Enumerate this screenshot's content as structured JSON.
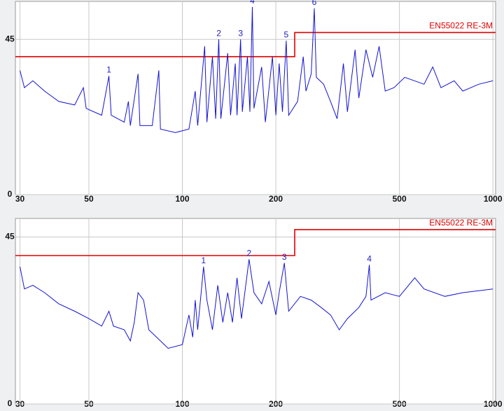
{
  "chart_data": [
    {
      "type": "line",
      "log_x": true,
      "grid": true,
      "xlim": [
        29,
        1020
      ],
      "xticks": [
        30,
        50,
        100,
        200,
        500,
        1000
      ],
      "ylim": [
        0,
        56
      ],
      "yticks": [
        0,
        45
      ],
      "series": [
        {
          "name": "EN55022 RE-3M",
          "color": "#e00000",
          "x": [
            29,
            230,
            230,
            1020
          ],
          "values": [
            40,
            40,
            47,
            47
          ]
        },
        {
          "color": "#1414d2",
          "x": [
            30,
            31,
            33,
            36,
            40,
            45,
            48,
            49,
            55,
            58,
            59,
            65,
            67,
            68,
            72,
            73,
            80,
            84,
            85,
            95,
            105,
            110,
            112,
            118,
            120,
            125,
            128,
            131,
            133,
            140,
            143,
            148,
            150,
            154,
            156,
            162,
            165,
            168,
            170,
            180,
            185,
            195,
            200,
            205,
            210,
            216,
            220,
            235,
            245,
            250,
            260,
            266,
            270,
            285,
            300,
            315,
            330,
            340,
            360,
            370,
            390,
            410,
            430,
            450,
            480,
            520,
            600,
            640,
            680,
            750,
            800,
            900,
            1000
          ],
          "values": [
            36,
            31,
            33,
            30,
            27,
            26,
            31,
            25,
            23,
            34.4,
            23,
            21,
            27,
            20,
            35,
            20,
            20,
            36,
            19,
            18,
            19,
            30,
            20,
            43,
            21,
            40,
            22,
            45,
            22,
            41,
            23,
            38,
            23,
            45,
            24,
            40,
            24,
            54.4,
            25,
            37,
            21,
            40,
            23,
            38,
            24,
            44.6,
            23,
            27,
            40,
            30,
            35,
            54,
            34,
            32,
            27,
            22,
            38,
            24,
            42,
            28,
            42,
            34,
            43,
            30,
            31,
            34,
            32,
            37,
            31,
            33,
            30,
            32,
            33
          ]
        }
      ],
      "markers": [
        {
          "label": "1",
          "x": 58,
          "y": 34.4
        },
        {
          "label": "2",
          "x": 131,
          "y": 45
        },
        {
          "label": "3",
          "x": 154,
          "y": 45
        },
        {
          "label": "4",
          "x": 168,
          "y": 54.4
        },
        {
          "label": "5",
          "x": 216,
          "y": 44.6
        },
        {
          "label": "6",
          "x": 266,
          "y": 54
        }
      ]
    },
    {
      "type": "line",
      "log_x": true,
      "grid": true,
      "xlim": [
        29,
        1020
      ],
      "xticks": [
        30,
        50,
        100,
        200,
        500,
        1000
      ],
      "ylim": [
        0,
        50
      ],
      "yticks": [
        0,
        45
      ],
      "series": [
        {
          "name": "EN55022 RE-3M",
          "color": "#e00000",
          "x": [
            29,
            230,
            230,
            1020
          ],
          "values": [
            40,
            40,
            47,
            47
          ]
        },
        {
          "color": "#1414d2",
          "x": [
            30,
            31,
            33,
            36,
            40,
            45,
            50,
            55,
            58,
            60,
            65,
            68,
            70,
            72,
            75,
            78,
            85,
            90,
            100,
            105,
            108,
            110,
            112,
            117,
            120,
            125,
            130,
            135,
            140,
            145,
            150,
            155,
            164,
            170,
            180,
            190,
            200,
            205,
            213,
            220,
            240,
            260,
            280,
            300,
            320,
            340,
            370,
            390,
            400,
            405,
            450,
            500,
            560,
            600,
            700,
            800,
            1000
          ],
          "values": [
            37,
            31,
            32,
            30,
            27,
            25,
            23,
            21,
            25,
            21,
            20,
            17,
            22,
            30,
            28,
            20,
            17,
            15,
            16,
            24,
            18,
            28,
            20,
            37,
            28,
            20,
            32,
            22,
            30,
            22,
            34,
            23,
            39,
            30,
            27,
            33,
            24,
            30,
            38,
            25,
            29,
            28,
            26,
            24,
            20,
            23,
            26,
            29,
            37.5,
            28,
            30,
            29,
            34,
            31,
            29,
            30,
            31
          ]
        }
      ],
      "markers": [
        {
          "label": "1",
          "x": 117,
          "y": 37
        },
        {
          "label": "2",
          "x": 164,
          "y": 39
        },
        {
          "label": "3",
          "x": 213,
          "y": 38
        },
        {
          "label": "4",
          "x": 400,
          "y": 37.5
        }
      ]
    }
  ]
}
